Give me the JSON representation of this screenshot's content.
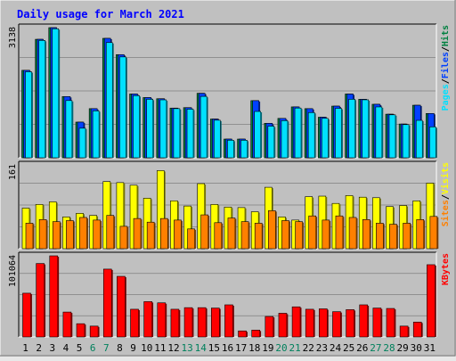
{
  "title": "Daily usage for March 2021",
  "colors": {
    "background": "#c0c0c0",
    "title": "#0000ff",
    "hits": "#008040",
    "files": "#0040ff",
    "pages": "#00e0ff",
    "visits": "#ffff00",
    "sites": "#ff8000",
    "kbytes": "#ff0000",
    "weekend_label": "#00805c"
  },
  "chart_data": [
    {
      "type": "bar",
      "name": "hits-files-pages",
      "ymax_label": "3138",
      "ylim": [
        0,
        3138
      ],
      "legend": {
        "pages": "Pages",
        "files": "Files",
        "hits": "Hits",
        "sep1": "/",
        "sep2": "/"
      },
      "categories": [
        "1",
        "2",
        "3",
        "4",
        "5",
        "6",
        "7",
        "8",
        "9",
        "10",
        "11",
        "12",
        "13",
        "14",
        "15",
        "16",
        "17",
        "18",
        "19",
        "20",
        "21",
        "22",
        "23",
        "24",
        "25",
        "26",
        "27",
        "28",
        "29",
        "30",
        "31"
      ],
      "series": [
        {
          "name": "Hits",
          "values": [
            2109,
            2857,
            3138,
            1476,
            860,
            1185,
            2880,
            2487,
            1538,
            1452,
            1424,
            1198,
            1209,
            1555,
            934,
            451,
            451,
            1378,
            831,
            950,
            1227,
            1185,
            978,
            1246,
            1538,
            1410,
            1290,
            1051,
            814,
            1267,
            1068
          ]
        },
        {
          "name": "Files",
          "values": [
            2109,
            2857,
            3138,
            1476,
            860,
            1185,
            2880,
            2487,
            1538,
            1452,
            1424,
            1198,
            1209,
            1555,
            934,
            451,
            451,
            1378,
            831,
            950,
            1227,
            1185,
            978,
            1246,
            1538,
            1410,
            1290,
            1051,
            814,
            1267,
            1068
          ]
        },
        {
          "name": "Pages",
          "values": [
            2074,
            2830,
            3111,
            1380,
            713,
            1131,
            2778,
            2432,
            1498,
            1411,
            1397,
            1185,
            1172,
            1480,
            906,
            423,
            423,
            1117,
            763,
            896,
            1199,
            1090,
            951,
            1192,
            1411,
            1398,
            1226,
            1036,
            800,
            902,
            745
          ]
        }
      ]
    },
    {
      "type": "bar",
      "name": "visits-sites",
      "ymax_label": "161",
      "ylim": [
        0,
        161
      ],
      "legend": {
        "sites": "Sites",
        "visits": "Visits",
        "sep": "/"
      },
      "categories": [
        "1",
        "2",
        "3",
        "4",
        "5",
        "6",
        "7",
        "8",
        "9",
        "10",
        "11",
        "12",
        "13",
        "14",
        "15",
        "16",
        "17",
        "18",
        "19",
        "20",
        "21",
        "22",
        "23",
        "24",
        "25",
        "26",
        "27",
        "28",
        "29",
        "30",
        "31"
      ],
      "series": [
        {
          "name": "Visits",
          "values": [
            78,
            85,
            90,
            61,
            68,
            64,
            129,
            127,
            122,
            97,
            150,
            92,
            82,
            125,
            85,
            80,
            79,
            71,
            118,
            61,
            55,
            100,
            101,
            87,
            102,
            99,
            98,
            81,
            83,
            92,
            126
          ]
        },
        {
          "name": "Sites",
          "values": [
            49,
            56,
            52,
            54,
            60,
            55,
            64,
            43,
            58,
            51,
            58,
            55,
            38,
            65,
            50,
            59,
            52,
            49,
            73,
            54,
            52,
            63,
            55,
            63,
            60,
            56,
            49,
            47,
            49,
            56,
            62
          ]
        }
      ]
    },
    {
      "type": "bar",
      "name": "kbytes",
      "ymax_label": "101064",
      "ylim": [
        0,
        101064
      ],
      "legend": {
        "kbytes": "KBytes"
      },
      "categories": [
        "1",
        "2",
        "3",
        "4",
        "5",
        "6",
        "7",
        "8",
        "9",
        "10",
        "11",
        "12",
        "13",
        "14",
        "15",
        "16",
        "17",
        "18",
        "19",
        "20",
        "21",
        "22",
        "23",
        "24",
        "25",
        "26",
        "27",
        "28",
        "29",
        "30",
        "31"
      ],
      "series": [
        {
          "name": "KBytes",
          "values": [
            54500,
            91500,
            101064,
            31000,
            16500,
            13500,
            84500,
            75500,
            34500,
            44000,
            42500,
            34500,
            36500,
            36500,
            36000,
            40000,
            7500,
            8500,
            25500,
            29500,
            37500,
            34500,
            35000,
            31500,
            34000,
            40000,
            36000,
            35500,
            13500,
            18500,
            90000
          ]
        }
      ]
    }
  ],
  "x_labels": [
    "1",
    "2",
    "3",
    "4",
    "5",
    "6",
    "7",
    "8",
    "9",
    "10",
    "11",
    "12",
    "13",
    "14",
    "15",
    "16",
    "17",
    "18",
    "19",
    "20",
    "21",
    "22",
    "23",
    "24",
    "25",
    "26",
    "27",
    "28",
    "29",
    "30",
    "31"
  ],
  "weekend_days": [
    "6",
    "7",
    "13",
    "14",
    "20",
    "21",
    "27",
    "28"
  ]
}
